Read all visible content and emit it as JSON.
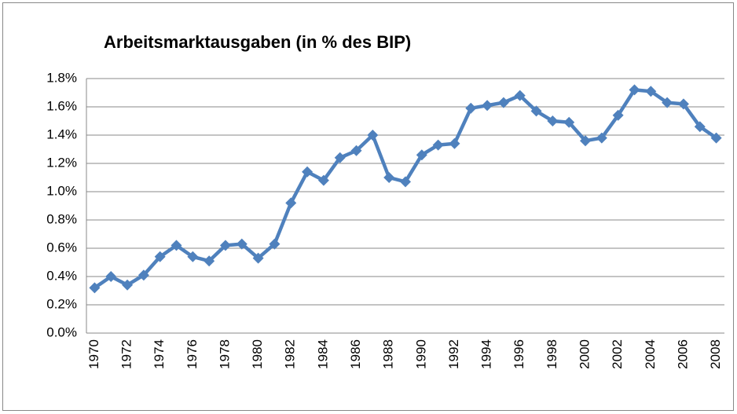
{
  "chart_data": {
    "type": "line",
    "title": "Arbeitsmarktausgaben (in % des BIP)",
    "categories": [
      "1970",
      null,
      "1972",
      null,
      "1974",
      null,
      "1976",
      null,
      "1978",
      null,
      "1980",
      null,
      "1982",
      null,
      "1984",
      null,
      "1986",
      null,
      "1988",
      null,
      "1990",
      null,
      "1992",
      null,
      "1994",
      null,
      "1996",
      null,
      "1998",
      null,
      "2000",
      null,
      "2002",
      null,
      "2004",
      null,
      "2006",
      null,
      "2008"
    ],
    "series": [
      {
        "color": "#4f81bd",
        "values": [
          0.32,
          0.4,
          0.34,
          0.41,
          0.54,
          0.62,
          0.54,
          0.51,
          0.62,
          0.63,
          0.53,
          0.63,
          0.92,
          1.14,
          1.08,
          1.24,
          1.29,
          1.4,
          1.1,
          1.07,
          1.26,
          1.33,
          1.34,
          1.59,
          1.61,
          1.63,
          1.68,
          1.57,
          1.5,
          1.49,
          1.36,
          1.38,
          1.54,
          1.72,
          1.71,
          1.63,
          1.62,
          1.46,
          1.38
        ]
      }
    ],
    "ylim": [
      0,
      1.8
    ],
    "yticks": [
      {
        "value": 0,
        "label": "0.0%"
      },
      {
        "value": 0.2,
        "label": "0.2%"
      },
      {
        "value": 0.4,
        "label": "0.4%"
      },
      {
        "value": 0.6,
        "label": "0.6%"
      },
      {
        "value": 0.8,
        "label": "0.8%"
      },
      {
        "value": 1.0,
        "label": "1.0%"
      },
      {
        "value": 1.2,
        "label": "1.2%"
      },
      {
        "value": 1.4,
        "label": "1.4%"
      },
      {
        "value": 1.6,
        "label": "1.6%"
      },
      {
        "value": 1.8,
        "label": "1.8%"
      }
    ],
    "grid": true
  }
}
